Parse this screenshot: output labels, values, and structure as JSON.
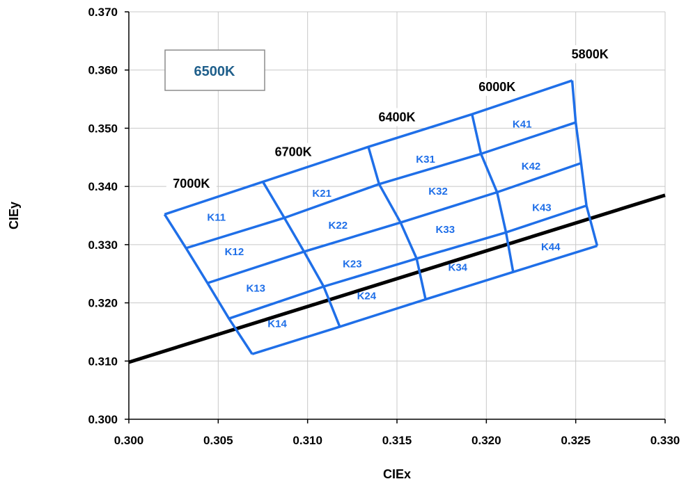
{
  "chart_data": {
    "type": "scatter",
    "title": "",
    "xlabel": "CIEx",
    "ylabel": "CIEy",
    "xlim": [
      0.3,
      0.33
    ],
    "ylim": [
      0.3,
      0.37
    ],
    "x_ticks": [
      "0.300",
      "0.305",
      "0.310",
      "0.315",
      "0.320",
      "0.325",
      "0.330"
    ],
    "y_ticks": [
      "0.300",
      "0.310",
      "0.320",
      "0.330",
      "0.340",
      "0.350",
      "0.360",
      "0.370"
    ],
    "grid": true,
    "inset_label": "6500K",
    "colors": {
      "bins": "#1f6fe8",
      "locus": "#000000",
      "inset_text": "#1f5f8b",
      "grid": "#c8c8c8"
    },
    "blackbody_locus": {
      "x": [
        0.3,
        0.33
      ],
      "y": [
        0.3098,
        0.3385
      ]
    },
    "grid_corners": [
      [
        [
          0.302,
          0.3352
        ],
        [
          0.3075,
          0.3408
        ],
        [
          0.3134,
          0.3468
        ],
        [
          0.3192,
          0.3524
        ],
        [
          0.3248,
          0.3582
        ]
      ],
      [
        [
          0.3032,
          0.3294
        ],
        [
          0.3087,
          0.3346
        ],
        [
          0.314,
          0.3404
        ],
        [
          0.3197,
          0.3456
        ],
        [
          0.325,
          0.351
        ]
      ],
      [
        [
          0.3044,
          0.3234
        ],
        [
          0.3098,
          0.3288
        ],
        [
          0.3152,
          0.3338
        ],
        [
          0.3206,
          0.339
        ],
        [
          0.3253,
          0.344
        ]
      ],
      [
        [
          0.3056,
          0.3173
        ],
        [
          0.3109,
          0.3228
        ],
        [
          0.3161,
          0.3276
        ],
        [
          0.3211,
          0.3321
        ],
        [
          0.3256,
          0.3367
        ]
      ],
      [
        [
          0.3069,
          0.3112
        ],
        [
          0.3118,
          0.3159
        ],
        [
          0.3166,
          0.3206
        ],
        [
          0.3215,
          0.3253
        ],
        [
          0.3262,
          0.3298
        ]
      ]
    ],
    "bins": [
      {
        "name": "K11",
        "x": 0.3049,
        "y": 0.3347
      },
      {
        "name": "K12",
        "x": 0.3059,
        "y": 0.3288
      },
      {
        "name": "K13",
        "x": 0.3071,
        "y": 0.3225
      },
      {
        "name": "K14",
        "x": 0.3083,
        "y": 0.3164
      },
      {
        "name": "K21",
        "x": 0.3108,
        "y": 0.3388
      },
      {
        "name": "K22",
        "x": 0.3117,
        "y": 0.3333
      },
      {
        "name": "K23",
        "x": 0.3125,
        "y": 0.3267
      },
      {
        "name": "K24",
        "x": 0.3133,
        "y": 0.3212
      },
      {
        "name": "K31",
        "x": 0.3166,
        "y": 0.3447
      },
      {
        "name": "K32",
        "x": 0.3173,
        "y": 0.3392
      },
      {
        "name": "K33",
        "x": 0.3177,
        "y": 0.3326
      },
      {
        "name": "K34",
        "x": 0.3184,
        "y": 0.3261
      },
      {
        "name": "K41",
        "x": 0.322,
        "y": 0.3507
      },
      {
        "name": "K42",
        "x": 0.3225,
        "y": 0.3435
      },
      {
        "name": "K43",
        "x": 0.3231,
        "y": 0.3364
      },
      {
        "name": "K44",
        "x": 0.3236,
        "y": 0.3296
      }
    ],
    "cct_labels": [
      {
        "text": "7000K",
        "x": 0.3035,
        "y": 0.3398
      },
      {
        "text": "6700K",
        "x": 0.3092,
        "y": 0.3452
      },
      {
        "text": "6400K",
        "x": 0.315,
        "y": 0.3512
      },
      {
        "text": "6000K",
        "x": 0.3206,
        "y": 0.3564
      },
      {
        "text": "5800K",
        "x": 0.3258,
        "y": 0.362
      }
    ]
  }
}
